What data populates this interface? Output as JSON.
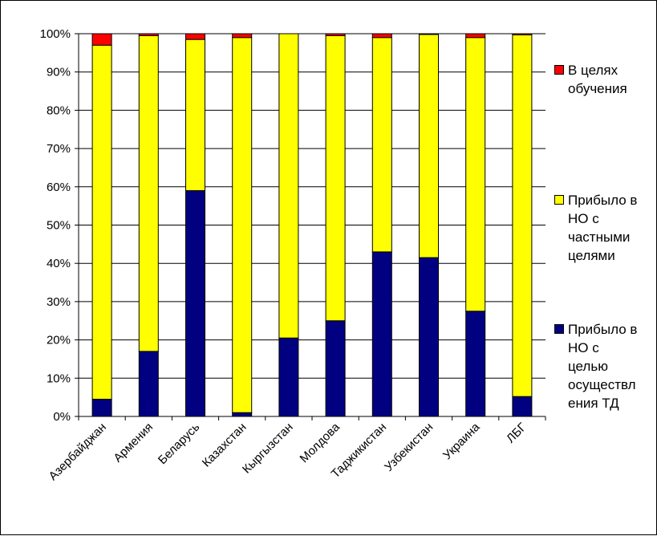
{
  "chart_data": {
    "type": "bar",
    "stacked": true,
    "percent": true,
    "categories": [
      "Азербайджан",
      "Армения",
      "Беларусь",
      "Казахстан",
      "Кыргызстан",
      "Молдова",
      "Таджикистан",
      "Узбекистан",
      "Украина",
      "ЛБГ"
    ],
    "series": [
      {
        "name": "Прибыло в НО с целью осуществления ТД",
        "color": "#000080",
        "values": [
          4.5,
          17,
          59,
          1,
          20.5,
          25,
          43,
          41.5,
          27.5,
          5.2
        ]
      },
      {
        "name": "Прибыло в НО с частными целями",
        "color": "#ffff00",
        "values": [
          92.5,
          82.5,
          39.5,
          98,
          79.5,
          74.5,
          56,
          58.3,
          71.5,
          94.5
        ]
      },
      {
        "name": "В целях обучения",
        "color": "#ff0000",
        "values": [
          3,
          0.5,
          1.5,
          1,
          0,
          0.5,
          1,
          0.2,
          1,
          0.3
        ]
      }
    ],
    "yticks": [
      "0%",
      "10%",
      "20%",
      "30%",
      "40%",
      "50%",
      "60%",
      "70%",
      "80%",
      "90%",
      "100%"
    ],
    "ylim": [
      0,
      100
    ],
    "grid": true,
    "legend_position": "right",
    "legend_labels": [
      "В целях\nобучения",
      "Прибыло в\nНО с\nчастными\nцелями",
      "Прибыло в\nНО с\nцелью\nосуществл\nения ТД"
    ]
  }
}
